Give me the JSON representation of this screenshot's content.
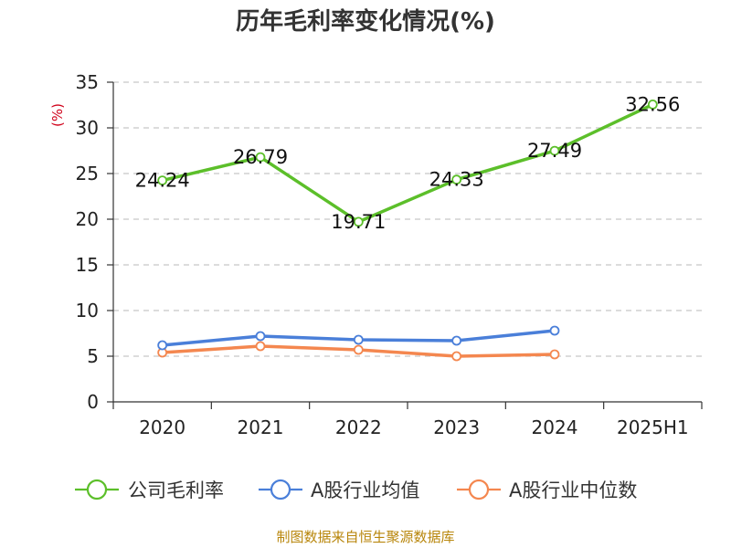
{
  "chart_data": {
    "type": "line",
    "title": "历年毛利率变化情况(%)",
    "ylabel": "(%)",
    "categories": [
      "2020",
      "2021",
      "2022",
      "2023",
      "2024",
      "2025H1"
    ],
    "ylim": [
      0,
      35
    ],
    "yticks": [
      0,
      5,
      10,
      15,
      20,
      25,
      30,
      35
    ],
    "grid": true,
    "legend_position": "bottom",
    "series": [
      {
        "name": "公司毛利率",
        "color": "#5cbf2a",
        "values": [
          24.24,
          26.79,
          19.71,
          24.33,
          27.49,
          32.56
        ],
        "labels": [
          "24.24",
          "26.79",
          "19.71",
          "24.33",
          "27.49",
          "32.56"
        ]
      },
      {
        "name": "A股行业均值",
        "color": "#4a7fd9",
        "values": [
          6.2,
          7.2,
          6.8,
          6.7,
          7.8,
          null
        ]
      },
      {
        "name": "A股行业中位数",
        "color": "#f4874f",
        "values": [
          5.4,
          6.1,
          5.7,
          5.0,
          5.2,
          null
        ]
      }
    ],
    "source": "制图数据来自恒生聚源数据库"
  }
}
